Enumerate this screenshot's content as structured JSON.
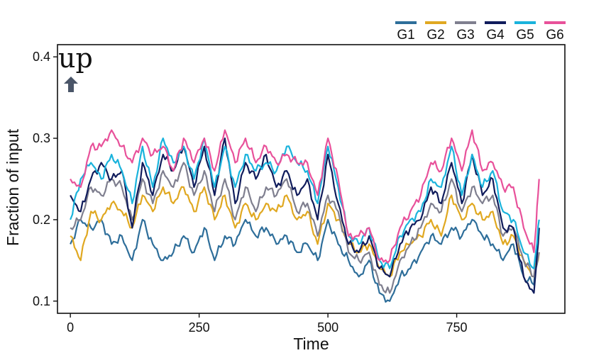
{
  "chart_data": {
    "type": "line",
    "xlabel": "Time",
    "ylabel": "Fraction of input",
    "xlim": [
      -25,
      960
    ],
    "ylim": [
      0.085,
      0.415
    ],
    "x_ticks": [
      0,
      250,
      500,
      750
    ],
    "y_ticks": [
      0.1,
      0.2,
      0.3,
      0.4
    ],
    "legend_position": "top-right",
    "grid": false,
    "annotation": {
      "text": "up",
      "arrow": "up-arrow-icon",
      "color": "#4a5568"
    },
    "x": [
      0,
      20,
      40,
      60,
      80,
      100,
      120,
      140,
      160,
      180,
      200,
      220,
      240,
      260,
      280,
      300,
      320,
      340,
      360,
      380,
      400,
      420,
      440,
      460,
      480,
      500,
      520,
      540,
      560,
      580,
      600,
      620,
      640,
      660,
      680,
      700,
      720,
      740,
      760,
      780,
      800,
      820,
      840,
      860,
      880,
      900,
      910
    ],
    "series": [
      {
        "name": "G1",
        "color": "#2e6e9a",
        "values": [
          0.17,
          0.2,
          0.19,
          0.2,
          0.17,
          0.18,
          0.15,
          0.2,
          0.17,
          0.15,
          0.16,
          0.18,
          0.16,
          0.19,
          0.15,
          0.18,
          0.17,
          0.2,
          0.18,
          0.19,
          0.17,
          0.18,
          0.16,
          0.17,
          0.15,
          0.2,
          0.17,
          0.15,
          0.13,
          0.15,
          0.11,
          0.1,
          0.13,
          0.14,
          0.16,
          0.18,
          0.17,
          0.19,
          0.18,
          0.2,
          0.18,
          0.17,
          0.15,
          0.17,
          0.13,
          0.12,
          0.19
        ]
      },
      {
        "name": "G2",
        "color": "#e0a821",
        "values": [
          0.18,
          0.15,
          0.21,
          0.2,
          0.22,
          0.21,
          0.19,
          0.23,
          0.21,
          0.24,
          0.22,
          0.24,
          0.21,
          0.24,
          0.2,
          0.23,
          0.19,
          0.22,
          0.2,
          0.22,
          0.21,
          0.23,
          0.2,
          0.21,
          0.17,
          0.22,
          0.2,
          0.17,
          0.16,
          0.17,
          0.14,
          0.13,
          0.16,
          0.17,
          0.18,
          0.2,
          0.18,
          0.23,
          0.2,
          0.22,
          0.2,
          0.21,
          0.17,
          0.18,
          0.15,
          0.13,
          0.16
        ]
      },
      {
        "name": "G3",
        "color": "#7f7f8f",
        "values": [
          0.19,
          0.2,
          0.24,
          0.23,
          0.25,
          0.24,
          0.2,
          0.25,
          0.22,
          0.26,
          0.24,
          0.27,
          0.23,
          0.26,
          0.21,
          0.25,
          0.2,
          0.24,
          0.21,
          0.24,
          0.23,
          0.25,
          0.21,
          0.22,
          0.18,
          0.23,
          0.21,
          0.16,
          0.15,
          0.16,
          0.12,
          0.11,
          0.15,
          0.17,
          0.19,
          0.22,
          0.21,
          0.25,
          0.21,
          0.24,
          0.22,
          0.23,
          0.18,
          0.19,
          0.15,
          0.13,
          0.16
        ]
      },
      {
        "name": "G4",
        "color": "#101c5c",
        "values": [
          0.23,
          0.21,
          0.25,
          0.27,
          0.25,
          0.26,
          0.19,
          0.27,
          0.23,
          0.28,
          0.26,
          0.29,
          0.24,
          0.29,
          0.23,
          0.3,
          0.22,
          0.27,
          0.25,
          0.28,
          0.24,
          0.26,
          0.23,
          0.25,
          0.2,
          0.28,
          0.22,
          0.17,
          0.16,
          0.18,
          0.14,
          0.13,
          0.17,
          0.19,
          0.2,
          0.24,
          0.22,
          0.27,
          0.22,
          0.28,
          0.23,
          0.25,
          0.19,
          0.19,
          0.13,
          0.11,
          0.19
        ]
      },
      {
        "name": "G5",
        "color": "#1ab3dc",
        "values": [
          0.2,
          0.25,
          0.27,
          0.25,
          0.28,
          0.26,
          0.22,
          0.29,
          0.24,
          0.3,
          0.27,
          0.29,
          0.25,
          0.3,
          0.24,
          0.29,
          0.24,
          0.28,
          0.26,
          0.27,
          0.26,
          0.29,
          0.27,
          0.26,
          0.22,
          0.29,
          0.24,
          0.18,
          0.17,
          0.19,
          0.15,
          0.14,
          0.18,
          0.2,
          0.21,
          0.25,
          0.24,
          0.29,
          0.23,
          0.28,
          0.24,
          0.26,
          0.21,
          0.2,
          0.16,
          0.14,
          0.2
        ]
      },
      {
        "name": "G6",
        "color": "#e8519a",
        "values": [
          0.25,
          0.24,
          0.29,
          0.29,
          0.31,
          0.29,
          0.27,
          0.3,
          0.28,
          0.29,
          0.26,
          0.3,
          0.27,
          0.3,
          0.26,
          0.31,
          0.27,
          0.3,
          0.27,
          0.29,
          0.27,
          0.28,
          0.27,
          0.27,
          0.23,
          0.3,
          0.25,
          0.18,
          0.18,
          0.19,
          0.15,
          0.15,
          0.19,
          0.21,
          0.23,
          0.27,
          0.26,
          0.3,
          0.26,
          0.31,
          0.26,
          0.27,
          0.24,
          0.24,
          0.19,
          0.16,
          0.25
        ]
      }
    ]
  }
}
